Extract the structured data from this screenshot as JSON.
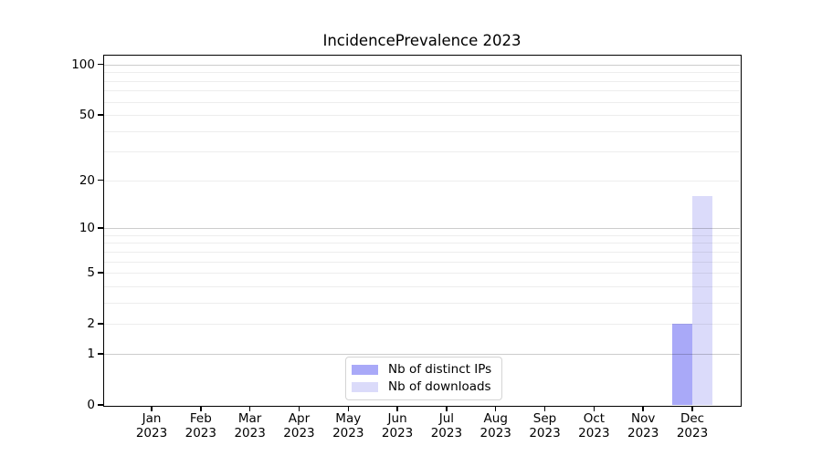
{
  "chart_data": {
    "type": "bar",
    "title": "IncidencePrevalence 2023",
    "categories": [
      "Jan",
      "Feb",
      "Mar",
      "Apr",
      "May",
      "Jun",
      "Jul",
      "Aug",
      "Sep",
      "Oct",
      "Nov",
      "Dec"
    ],
    "category_year": "2023",
    "series": [
      {
        "name": "Nb of distinct IPs",
        "color": "#a9a9f8",
        "values": [
          0,
          0,
          0,
          0,
          0,
          0,
          0,
          0,
          0,
          0,
          0,
          2
        ]
      },
      {
        "name": "Nb of downloads",
        "color": "#dbdbfa",
        "values": [
          0,
          0,
          0,
          0,
          0,
          0,
          0,
          0,
          0,
          0,
          0,
          16
        ]
      }
    ],
    "yaxis": {
      "scale": "log1p",
      "tick_labels": [
        0,
        1,
        2,
        5,
        10,
        20,
        50,
        100
      ],
      "major_gridlines": [
        1,
        10,
        100
      ],
      "minor_gridlines": [
        2,
        3,
        4,
        5,
        6,
        7,
        8,
        9,
        20,
        30,
        40,
        50,
        60,
        70,
        80,
        90
      ],
      "ylim": [
        0,
        113
      ]
    },
    "xlabel": "",
    "ylabel": "",
    "legend_position": "lower center",
    "colors": {
      "major_grid": "rgba(0,0,0,0.20)",
      "minor_grid": "rgba(0,0,0,0.07)",
      "axis": "#000000",
      "background": "#ffffff"
    }
  }
}
